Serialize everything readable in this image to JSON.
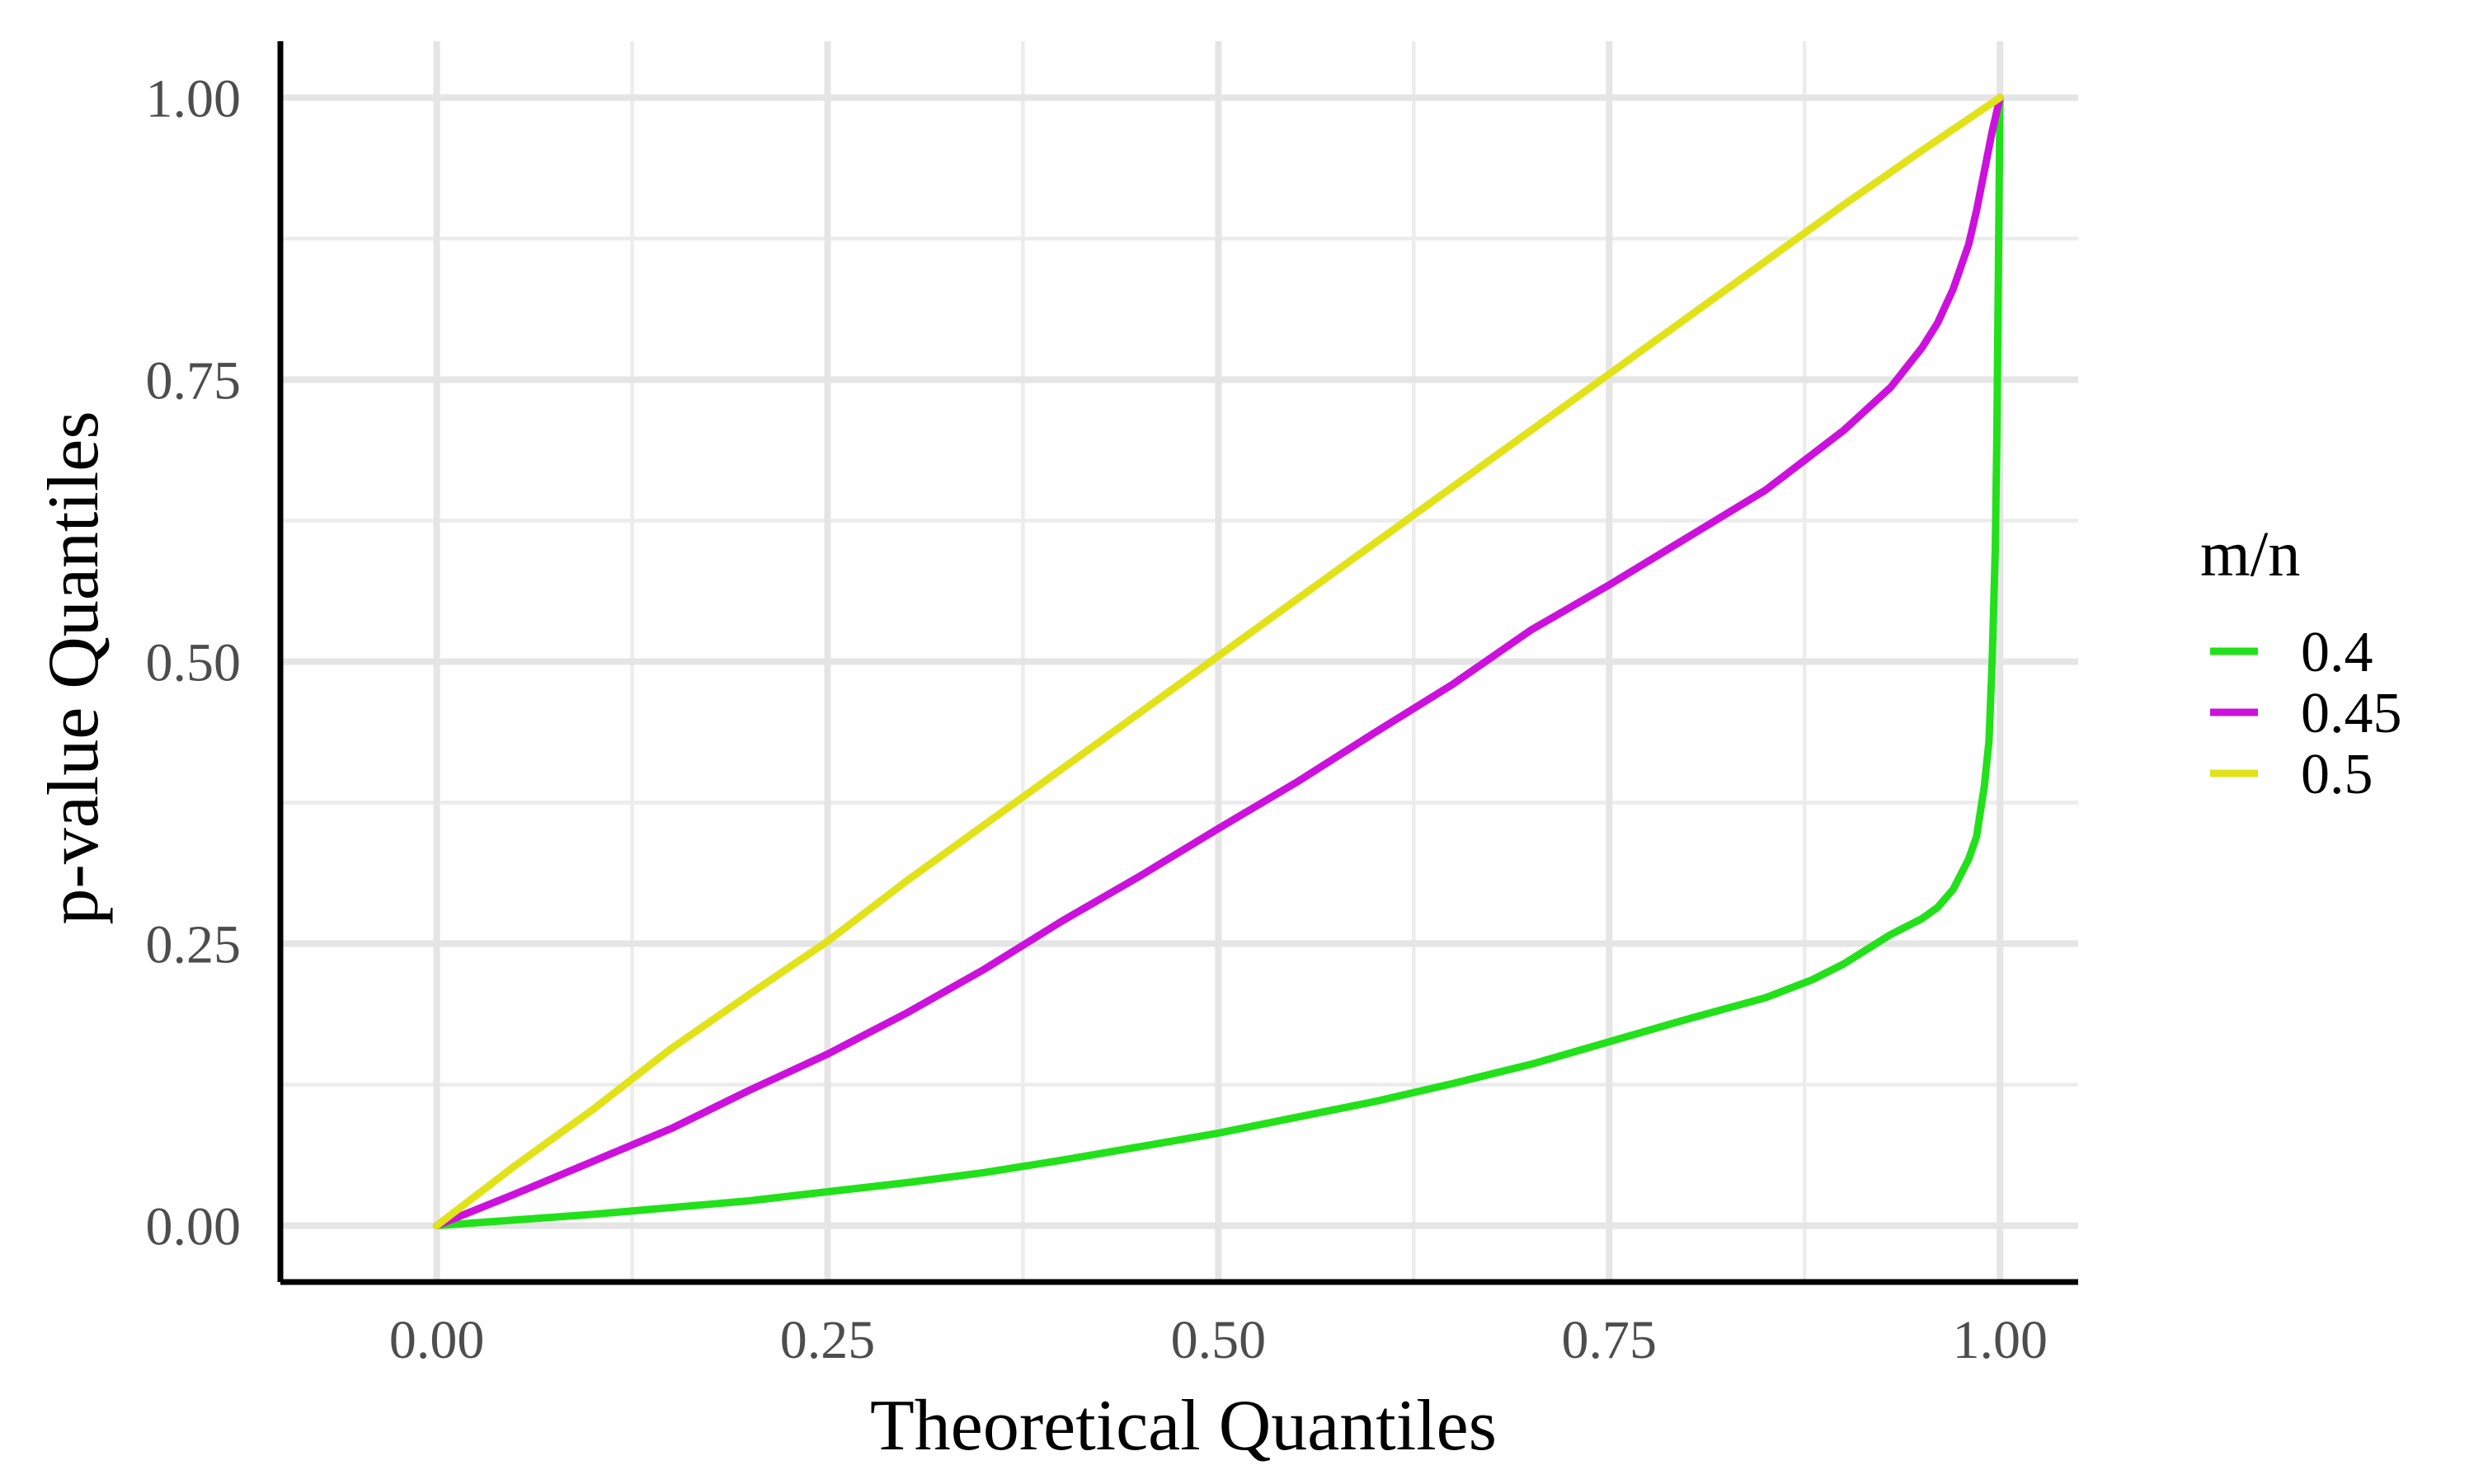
{
  "chart_data": {
    "type": "line",
    "xlabel": "Theoretical Quantiles",
    "ylabel": "p-value Quantiles",
    "xlim": [
      -0.1,
      1.05
    ],
    "ylim": [
      -0.05,
      1.05
    ],
    "x_ticks": [
      0.0,
      0.25,
      0.5,
      0.75,
      1.0
    ],
    "y_ticks": [
      0.0,
      0.25,
      0.5,
      0.75,
      1.0
    ],
    "x_tick_labels": [
      "0.00",
      "0.25",
      "0.50",
      "0.75",
      "1.00"
    ],
    "y_tick_labels": [
      "0.00",
      "0.25",
      "0.50",
      "0.75",
      "1.00"
    ],
    "grid": true,
    "legend": {
      "title": "m/n",
      "position": "right"
    },
    "series": [
      {
        "name": "0.4",
        "color": "#22e01a",
        "x": [
          0,
          0.05,
          0.1,
          0.15,
          0.2,
          0.25,
          0.3,
          0.35,
          0.4,
          0.45,
          0.5,
          0.55,
          0.6,
          0.65,
          0.7,
          0.75,
          0.8,
          0.85,
          0.88,
          0.9,
          0.93,
          0.95,
          0.96,
          0.97,
          0.98,
          0.985,
          0.99,
          0.993,
          0.995,
          0.997,
          0.998,
          0.999,
          1.0
        ],
        "y": [
          0,
          0.005,
          0.01,
          0.016,
          0.022,
          0.03,
          0.038,
          0.047,
          0.058,
          0.07,
          0.082,
          0.096,
          0.11,
          0.126,
          0.143,
          0.163,
          0.183,
          0.202,
          0.218,
          0.232,
          0.258,
          0.272,
          0.282,
          0.298,
          0.325,
          0.345,
          0.39,
          0.43,
          0.5,
          0.6,
          0.7,
          0.85,
          1.0
        ]
      },
      {
        "name": "0.45",
        "color": "#cc11dd",
        "x": [
          0,
          0.05,
          0.1,
          0.15,
          0.2,
          0.25,
          0.3,
          0.35,
          0.4,
          0.45,
          0.5,
          0.55,
          0.6,
          0.65,
          0.7,
          0.75,
          0.8,
          0.85,
          0.9,
          0.93,
          0.95,
          0.96,
          0.97,
          0.98,
          0.985,
          0.99,
          0.995,
          1.0
        ],
        "y": [
          0,
          0.028,
          0.057,
          0.086,
          0.12,
          0.152,
          0.188,
          0.227,
          0.27,
          0.31,
          0.352,
          0.393,
          0.437,
          0.48,
          0.528,
          0.568,
          0.61,
          0.652,
          0.705,
          0.743,
          0.778,
          0.8,
          0.83,
          0.87,
          0.9,
          0.935,
          0.97,
          1.0
        ]
      },
      {
        "name": "0.5",
        "color": "#e2e21a",
        "x": [
          0,
          0.05,
          0.1,
          0.15,
          0.2,
          0.25,
          0.3,
          0.35,
          0.4,
          0.45,
          0.5,
          0.55,
          0.6,
          0.65,
          0.7,
          0.75,
          0.8,
          0.85,
          0.9,
          0.95,
          1.0
        ],
        "y": [
          0,
          0.053,
          0.103,
          0.157,
          0.205,
          0.252,
          0.305,
          0.355,
          0.405,
          0.455,
          0.505,
          0.555,
          0.605,
          0.655,
          0.705,
          0.755,
          0.805,
          0.855,
          0.905,
          0.953,
          1.0
        ]
      }
    ]
  }
}
